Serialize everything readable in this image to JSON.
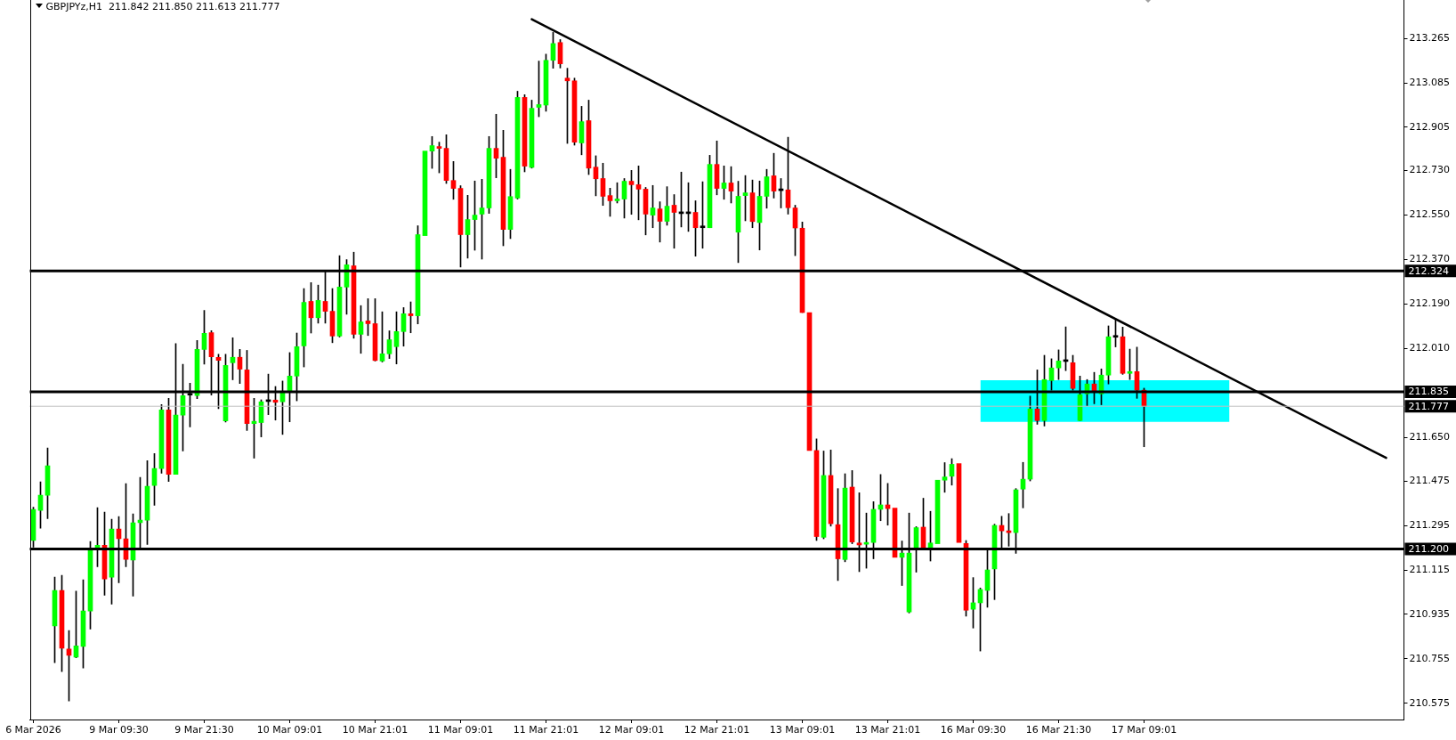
{
  "chart_data": {
    "type": "candlestick",
    "title": "GBPJPYz,H1  211.842 211.850 211.613 211.777",
    "categories": [
      "6 Mar 2026",
      null,
      null,
      null,
      null,
      null,
      null,
      null,
      null,
      null,
      null,
      null,
      "9 Mar 09:30",
      null,
      null,
      null,
      null,
      null,
      null,
      null,
      null,
      null,
      null,
      null,
      "9 Mar 21:30",
      null,
      null,
      null,
      null,
      null,
      null,
      null,
      null,
      null,
      null,
      null,
      "10 Mar 09:01",
      null,
      null,
      null,
      null,
      null,
      null,
      null,
      null,
      null,
      null,
      null,
      "10 Mar 21:01",
      null,
      null,
      null,
      null,
      null,
      null,
      null,
      null,
      null,
      null,
      null,
      "11 Mar 09:01",
      null,
      null,
      null,
      null,
      null,
      null,
      null,
      null,
      null,
      null,
      null,
      "11 Mar 21:01",
      null,
      null,
      null,
      null,
      null,
      null,
      null,
      null,
      null,
      null,
      null,
      "12 Mar 09:01",
      null,
      null,
      null,
      null,
      null,
      null,
      null,
      null,
      null,
      null,
      null,
      "12 Mar 21:01",
      null,
      null,
      null,
      null,
      null,
      null,
      null,
      null,
      null,
      null,
      null,
      "13 Mar 09:01",
      null,
      null,
      null,
      null,
      null,
      null,
      null,
      null,
      null,
      null,
      null,
      "13 Mar 21:01",
      null,
      null,
      null,
      null,
      null,
      null,
      null,
      null,
      null,
      null,
      null,
      "16 Mar 09:30",
      null,
      null,
      null,
      null,
      null,
      null,
      null,
      null,
      null,
      null,
      null,
      "16 Mar 21:30",
      null,
      null,
      null,
      null,
      null,
      null,
      null,
      null,
      null,
      null,
      null,
      "17 Mar 09:01",
      null,
      null,
      null,
      null,
      null,
      null,
      null,
      null,
      null,
      null,
      null,
      null,
      null,
      null,
      null,
      null,
      null,
      null,
      null,
      null,
      null,
      null,
      null,
      null,
      null,
      null,
      null,
      null,
      null,
      null,
      null,
      null,
      null,
      null,
      null,
      null
    ],
    "ohlc": [
      [
        211.234,
        211.369,
        211.207,
        211.36
      ],
      [
        211.356,
        211.471,
        211.284,
        211.417
      ],
      [
        211.417,
        211.608,
        211.322,
        211.536
      ],
      [
        210.888,
        211.086,
        210.74,
        211.032
      ],
      [
        211.032,
        211.093,
        210.704,
        210.798
      ],
      [
        210.795,
        210.87,
        210.585,
        210.77
      ],
      [
        210.762,
        211.029,
        210.76,
        210.808
      ],
      [
        210.806,
        211.075,
        210.718,
        210.949
      ],
      [
        210.949,
        211.23,
        210.876,
        211.194
      ],
      [
        211.198,
        211.367,
        211.128,
        211.215
      ],
      [
        211.215,
        211.349,
        211.013,
        211.078
      ],
      [
        211.086,
        211.32,
        210.977,
        211.28
      ],
      [
        211.28,
        211.331,
        211.063,
        211.241
      ],
      [
        211.241,
        211.464,
        211.128,
        211.158
      ],
      [
        211.155,
        211.342,
        211.009,
        211.306
      ],
      [
        211.306,
        211.489,
        211.2,
        211.316
      ],
      [
        211.316,
        211.557,
        211.218,
        211.453
      ],
      [
        211.457,
        211.586,
        211.376,
        211.525
      ],
      [
        211.525,
        211.784,
        211.506,
        211.762
      ],
      [
        211.762,
        211.809,
        211.473,
        211.502
      ],
      [
        211.502,
        212.03,
        211.502,
        211.741
      ],
      [
        211.741,
        211.947,
        211.596,
        211.82
      ],
      [
        211.822,
        211.87,
        211.693,
        211.822
      ],
      [
        211.82,
        212.043,
        211.808,
        212.007
      ],
      [
        212.007,
        212.165,
        211.947,
        212.072
      ],
      [
        212.075,
        212.083,
        211.822,
        211.977
      ],
      [
        211.975,
        211.987,
        211.767,
        211.963
      ],
      [
        211.718,
        211.987,
        211.713,
        211.942
      ],
      [
        211.953,
        212.054,
        211.884,
        211.975
      ],
      [
        211.975,
        212.007,
        211.869,
        211.927
      ],
      [
        211.924,
        212.003,
        211.679,
        211.707
      ],
      [
        211.707,
        211.809,
        211.567,
        211.716
      ],
      [
        211.711,
        211.803,
        211.653,
        211.795
      ],
      [
        211.796,
        211.907,
        211.743,
        211.796
      ],
      [
        211.802,
        211.857,
        211.721,
        211.793
      ],
      [
        211.795,
        211.879,
        211.663,
        211.831
      ],
      [
        211.834,
        211.994,
        211.714,
        211.899
      ],
      [
        211.899,
        212.073,
        211.799,
        212.018
      ],
      [
        212.021,
        212.253,
        211.936,
        212.197
      ],
      [
        212.201,
        212.277,
        212.073,
        212.135
      ],
      [
        212.135,
        212.267,
        212.113,
        212.205
      ],
      [
        212.201,
        212.32,
        212.113,
        212.161
      ],
      [
        212.161,
        212.253,
        212.034,
        212.061
      ],
      [
        212.061,
        212.386,
        212.057,
        212.259
      ],
      [
        212.259,
        212.37,
        212.149,
        212.349
      ],
      [
        212.345,
        212.4,
        212.052,
        212.068
      ],
      [
        212.068,
        212.184,
        211.991,
        212.118
      ],
      [
        212.122,
        212.212,
        212.063,
        212.111
      ],
      [
        212.111,
        212.212,
        211.96,
        211.962
      ],
      [
        211.96,
        212.159,
        211.956,
        211.989
      ],
      [
        211.989,
        212.082,
        211.97,
        212.046
      ],
      [
        212.018,
        212.159,
        211.948,
        212.079
      ],
      [
        212.079,
        212.176,
        212.02,
        212.151
      ],
      [
        212.151,
        212.199,
        212.074,
        212.143
      ],
      [
        212.143,
        212.507,
        212.11,
        212.471
      ],
      [
        212.467,
        212.809,
        212.467,
        212.809
      ],
      [
        212.809,
        212.868,
        212.739,
        212.831
      ],
      [
        212.827,
        212.845,
        212.721,
        212.82
      ],
      [
        212.82,
        212.875,
        212.678,
        212.69
      ],
      [
        212.69,
        212.767,
        212.614,
        212.658
      ],
      [
        212.658,
        212.669,
        212.34,
        212.471
      ],
      [
        212.471,
        212.63,
        212.376,
        212.532
      ],
      [
        212.532,
        212.688,
        212.408,
        212.55
      ],
      [
        212.554,
        212.695,
        212.372,
        212.579
      ],
      [
        212.579,
        212.868,
        212.557,
        212.82
      ],
      [
        212.82,
        212.958,
        212.701,
        212.78
      ],
      [
        212.784,
        212.893,
        212.426,
        212.492
      ],
      [
        212.492,
        212.735,
        212.455,
        212.625
      ],
      [
        212.619,
        213.051,
        212.615,
        213.026
      ],
      [
        213.026,
        213.037,
        212.725,
        212.748
      ],
      [
        212.743,
        213.015,
        212.74,
        212.982
      ],
      [
        212.986,
        213.173,
        212.948,
        212.997
      ],
      [
        212.995,
        213.201,
        212.97,
        213.176
      ],
      [
        213.176,
        213.289,
        213.144,
        213.244
      ],
      [
        213.248,
        213.26,
        213.145,
        213.162
      ],
      [
        213.104,
        213.144,
        212.84,
        213.093
      ],
      [
        213.093,
        213.104,
        212.833,
        212.845
      ],
      [
        212.842,
        212.99,
        212.794,
        212.928
      ],
      [
        212.932,
        213.015,
        212.714,
        212.74
      ],
      [
        212.744,
        212.79,
        212.628,
        212.697
      ],
      [
        212.698,
        212.76,
        212.589,
        212.626
      ],
      [
        212.629,
        212.659,
        212.545,
        212.608
      ],
      [
        212.608,
        212.681,
        212.599,
        212.615
      ],
      [
        212.615,
        212.698,
        212.538,
        212.687
      ],
      [
        212.687,
        212.731,
        212.553,
        212.673
      ],
      [
        212.673,
        212.749,
        212.531,
        212.655
      ],
      [
        212.655,
        212.662,
        212.47,
        212.554
      ],
      [
        212.55,
        212.67,
        212.499,
        212.579
      ],
      [
        212.575,
        212.604,
        212.441,
        212.525
      ],
      [
        212.525,
        212.665,
        212.509,
        212.586
      ],
      [
        212.59,
        212.633,
        212.416,
        212.561
      ],
      [
        212.556,
        212.724,
        212.502,
        212.556
      ],
      [
        212.556,
        212.681,
        212.484,
        212.556
      ],
      [
        212.561,
        212.608,
        212.384,
        212.499
      ],
      [
        212.499,
        212.685,
        212.416,
        212.499
      ],
      [
        212.499,
        212.792,
        212.499,
        212.755
      ],
      [
        212.755,
        212.85,
        212.632,
        212.658
      ],
      [
        212.658,
        212.749,
        212.614,
        212.68
      ],
      [
        212.68,
        212.746,
        212.599,
        212.647
      ],
      [
        212.481,
        212.687,
        212.358,
        212.626
      ],
      [
        212.629,
        212.71,
        212.527,
        212.64
      ],
      [
        212.64,
        212.692,
        212.499,
        212.524
      ],
      [
        212.52,
        212.688,
        212.409,
        212.626
      ],
      [
        212.626,
        212.735,
        212.578,
        212.705
      ],
      [
        212.709,
        212.8,
        212.619,
        212.647
      ],
      [
        212.649,
        212.698,
        212.579,
        212.649
      ],
      [
        212.652,
        212.865,
        212.554,
        212.58
      ],
      [
        212.579,
        212.59,
        212.386,
        212.498
      ],
      [
        212.497,
        212.522,
        212.156,
        212.156
      ],
      [
        212.156,
        212.165,
        211.594,
        211.598
      ],
      [
        211.598,
        211.645,
        211.234,
        211.25
      ],
      [
        211.247,
        211.596,
        211.241,
        211.497
      ],
      [
        211.497,
        211.6,
        211.292,
        211.302
      ],
      [
        211.298,
        211.444,
        211.072,
        211.16
      ],
      [
        211.157,
        211.504,
        211.148,
        211.446
      ],
      [
        211.45,
        211.517,
        211.221,
        211.228
      ],
      [
        211.224,
        211.427,
        211.108,
        211.216
      ],
      [
        211.219,
        211.345,
        211.122,
        211.226
      ],
      [
        211.226,
        211.391,
        211.16,
        211.36
      ],
      [
        211.36,
        211.501,
        211.314,
        211.378
      ],
      [
        211.378,
        211.465,
        211.296,
        211.363
      ],
      [
        211.365,
        211.369,
        211.157,
        211.166
      ],
      [
        211.166,
        211.232,
        211.052,
        211.183
      ],
      [
        210.945,
        211.345,
        210.941,
        211.183
      ],
      [
        211.202,
        211.29,
        211.106,
        211.286
      ],
      [
        211.288,
        211.405,
        211.196,
        211.202
      ],
      [
        211.202,
        211.352,
        211.151,
        211.224
      ],
      [
        211.221,
        211.487,
        211.219,
        211.478
      ],
      [
        211.478,
        211.549,
        211.429,
        211.491
      ],
      [
        211.494,
        211.565,
        211.458,
        211.542
      ],
      [
        211.545,
        211.555,
        211.224,
        211.226
      ],
      [
        211.222,
        211.234,
        210.928,
        210.952
      ],
      [
        210.956,
        211.084,
        210.88,
        210.982
      ],
      [
        210.982,
        211.042,
        210.787,
        211.036
      ],
      [
        211.032,
        211.197,
        210.964,
        211.115
      ],
      [
        211.119,
        211.3,
        210.995,
        211.295
      ],
      [
        211.295,
        211.332,
        211.204,
        211.273
      ],
      [
        211.273,
        211.343,
        211.211,
        211.266
      ],
      [
        211.266,
        211.444,
        211.182,
        211.439
      ],
      [
        211.442,
        211.55,
        211.366,
        211.482
      ],
      [
        211.482,
        211.818,
        211.475,
        211.766
      ],
      [
        211.766,
        211.924,
        211.704,
        211.719
      ],
      [
        211.719,
        211.983,
        211.697,
        211.885
      ],
      [
        211.881,
        211.969,
        211.842,
        211.932
      ],
      [
        211.932,
        212.005,
        211.885,
        211.96
      ],
      [
        211.958,
        212.098,
        211.921,
        211.958
      ],
      [
        211.953,
        211.983,
        211.842,
        211.849
      ],
      [
        211.719,
        211.899,
        211.719,
        211.824
      ],
      [
        211.827,
        211.885,
        211.779,
        211.867
      ],
      [
        211.867,
        211.914,
        211.787,
        211.834
      ],
      [
        211.827,
        211.928,
        211.783,
        211.903
      ],
      [
        211.903,
        212.102,
        211.867,
        212.058
      ],
      [
        212.056,
        212.129,
        212.017,
        212.056
      ],
      [
        212.058,
        212.097,
        211.906,
        211.91
      ],
      [
        211.91,
        212.008,
        211.885,
        211.917
      ],
      [
        211.917,
        212.016,
        211.809,
        211.842
      ],
      [
        211.842,
        211.85,
        211.613,
        211.777
      ],
      null,
      null,
      null,
      null,
      null,
      null,
      null,
      null,
      null,
      null,
      null,
      null,
      null,
      null,
      null,
      null,
      null,
      null,
      null,
      null,
      null,
      null,
      null,
      null,
      null,
      null,
      null,
      null,
      null,
      null,
      null,
      null,
      null,
      null,
      null,
      null
    ],
    "colors": [
      "#00ff00",
      "#00ff00",
      "#00ff00",
      "#00ff00",
      "#ff0000",
      "#ff0000",
      "#00ff00",
      "#00ff00",
      "#00ff00",
      "#00ff00",
      "#ff0000",
      "#00ff00",
      "#ff0000",
      "#ff0000",
      "#00ff00",
      "#00ff00",
      "#00ff00",
      "#00ff00",
      "#00ff00",
      "#ff0000",
      "#00ff00",
      "#00ff00",
      "#000000",
      "#00ff00",
      "#00ff00",
      "#ff0000",
      "#ff0000",
      "#00ff00",
      "#00ff00",
      "#ff0000",
      "#ff0000",
      "#00ff00",
      "#00ff00",
      "#000000",
      "#ff0000",
      "#00ff00",
      "#00ff00",
      "#00ff00",
      "#00ff00",
      "#ff0000",
      "#00ff00",
      "#ff0000",
      "#ff0000",
      "#00ff00",
      "#00ff00",
      "#ff0000",
      "#00ff00",
      "#ff0000",
      "#ff0000",
      "#00ff00",
      "#00ff00",
      "#00ff00",
      "#00ff00",
      "#ff0000",
      "#00ff00",
      "#00ff00",
      "#00ff00",
      "#ff0000",
      "#ff0000",
      "#ff0000",
      "#ff0000",
      "#00ff00",
      "#00ff00",
      "#00ff00",
      "#00ff00",
      "#ff0000",
      "#ff0000",
      "#00ff00",
      "#00ff00",
      "#ff0000",
      "#00ff00",
      "#00ff00",
      "#00ff00",
      "#00ff00",
      "#ff0000",
      "#ff0000",
      "#ff0000",
      "#00ff00",
      "#ff0000",
      "#ff0000",
      "#ff0000",
      "#ff0000",
      "#00ff00",
      "#00ff00",
      "#ff0000",
      "#ff0000",
      "#ff0000",
      "#00ff00",
      "#ff0000",
      "#00ff00",
      "#ff0000",
      "#000000",
      "#000000",
      "#ff0000",
      "#000000",
      "#00ff00",
      "#ff0000",
      "#00ff00",
      "#ff0000",
      "#00ff00",
      "#00ff00",
      "#ff0000",
      "#00ff00",
      "#00ff00",
      "#ff0000",
      "#000000",
      "#ff0000",
      "#ff0000",
      "#ff0000",
      "#ff0000",
      "#ff0000",
      "#00ff00",
      "#ff0000",
      "#ff0000",
      "#00ff00",
      "#ff0000",
      "#ff0000",
      "#00ff00",
      "#00ff00",
      "#00ff00",
      "#ff0000",
      "#ff0000",
      "#00ff00",
      "#00ff00",
      "#00ff00",
      "#ff0000",
      "#00ff00",
      "#00ff00",
      "#00ff00",
      "#00ff00",
      "#ff0000",
      "#ff0000",
      "#00ff00",
      "#00ff00",
      "#00ff00",
      "#00ff00",
      "#ff0000",
      "#ff0000",
      "#00ff00",
      "#00ff00",
      "#00ff00",
      "#ff0000",
      "#00ff00",
      "#00ff00",
      "#00ff00",
      "#000000",
      "#ff0000",
      "#00ff00",
      "#00ff00",
      "#ff0000",
      "#00ff00",
      "#00ff00",
      "#000000",
      "#ff0000",
      "#00ff00",
      "#ff0000",
      "#ff0000",
      null,
      null,
      null,
      null,
      null,
      null,
      null,
      null,
      null,
      null,
      null,
      null,
      null,
      null,
      null,
      null,
      null,
      null,
      null,
      null,
      null,
      null,
      null,
      null,
      null,
      null,
      null,
      null,
      null,
      null,
      null,
      null,
      null,
      null,
      null,
      null
    ],
    "series": [
      {
        "type": "line",
        "color": "#000000",
        "values": [
          null,
          null,
          null,
          null,
          null,
          null,
          null,
          null,
          null,
          null,
          null,
          null,
          null,
          null,
          null,
          null,
          null,
          null,
          null,
          null,
          null,
          null,
          null,
          null,
          null,
          null,
          null,
          null,
          null,
          null,
          null,
          null,
          null,
          null,
          null,
          null,
          null,
          null,
          null,
          null,
          null,
          null,
          null,
          null,
          null,
          null,
          null,
          null,
          null,
          null,
          null,
          null,
          null,
          null,
          null,
          null,
          null,
          null,
          null,
          null,
          null,
          null,
          null,
          null,
          null,
          null,
          null,
          null,
          null,
          null,
          213.342,
          null,
          null,
          null,
          null,
          null,
          null,
          null,
          null,
          null,
          null,
          null,
          null,
          null,
          null,
          null,
          null,
          null,
          null,
          null,
          null,
          null,
          null,
          null,
          null,
          null,
          null,
          null,
          null,
          null,
          null,
          null,
          null,
          null,
          null,
          null,
          null,
          null,
          null,
          null,
          null,
          null,
          null,
          null,
          null,
          null,
          null,
          null,
          null,
          null,
          null,
          null,
          null,
          null,
          null,
          null,
          null,
          null,
          null,
          null,
          null,
          null,
          null,
          null,
          null,
          null,
          null,
          null,
          null,
          null,
          null,
          null,
          null,
          null,
          null,
          null,
          null,
          null,
          null,
          null,
          null,
          null,
          null,
          null,
          null,
          null,
          null,
          null,
          null,
          null,
          null,
          null,
          null,
          null,
          null,
          null,
          null,
          null,
          null,
          null,
          null,
          null,
          null,
          null,
          null,
          null,
          null,
          null,
          null,
          null,
          null,
          null,
          null,
          null,
          null,
          null,
          null,
          null,
          null,
          null,
          211.568,
          null,
          null
        ]
      },
      {
        "type": "area",
        "color": "#00ffff",
        "values": [
          null,
          null,
          null,
          null,
          null,
          null,
          null,
          null,
          null,
          null,
          null,
          null,
          null,
          null,
          null,
          null,
          null,
          null,
          null,
          null,
          null,
          null,
          null,
          null,
          null,
          null,
          null,
          null,
          null,
          null,
          null,
          null,
          null,
          null,
          null,
          null,
          null,
          null,
          null,
          null,
          null,
          null,
          null,
          null,
          null,
          null,
          null,
          null,
          null,
          null,
          null,
          null,
          null,
          null,
          null,
          null,
          null,
          null,
          null,
          null,
          null,
          null,
          null,
          null,
          null,
          null,
          null,
          null,
          null,
          null,
          null,
          null,
          null,
          null,
          null,
          null,
          null,
          null,
          null,
          null,
          null,
          null,
          null,
          null,
          null,
          null,
          null,
          null,
          null,
          null,
          null,
          null,
          null,
          null,
          null,
          null,
          null,
          null,
          null,
          null,
          null,
          null,
          null,
          null,
          null,
          null,
          null,
          null,
          null,
          null,
          null,
          null,
          null,
          null,
          null,
          null,
          null,
          null,
          null,
          null,
          null,
          null,
          null,
          null,
          null,
          null,
          null,
          null,
          null,
          null,
          null,
          null,
          null,
          null,
          null,
          null,
          null,
          null,
          null,
          null,
          null,
          null,
          null,
          null,
          null,
          null,
          null,
          null,
          null,
          null,
          null,
          null,
          null,
          null,
          null,
          null,
          null,
          null,
          null,
          null,
          null,
          null,
          null,
          null,
          null,
          null,
          null,
          null,
          null,
          null,
          null,
          null,
          null,
          null,
          null,
          null,
          null,
          null,
          null,
          null,
          null,
          null,
          null,
          null,
          null,
          null,
          null,
          null,
          null,
          null,
          null,
          null,
          null
        ],
        "lower": [
          null,
          null,
          null,
          null,
          null,
          null,
          null,
          null,
          null,
          null,
          null,
          null,
          null,
          null,
          null,
          null,
          null,
          null,
          null,
          null,
          null,
          null,
          null,
          null,
          null,
          null,
          null,
          null,
          null,
          null,
          null,
          null,
          null,
          null,
          null,
          null,
          null,
          null,
          null,
          null,
          null,
          null,
          null,
          null,
          null,
          null,
          null,
          null,
          null,
          null,
          null,
          null,
          null,
          null,
          null,
          null,
          null,
          null,
          null,
          null,
          null,
          null,
          null,
          null,
          null,
          null,
          null,
          null,
          null,
          null,
          null,
          null,
          null,
          null,
          null,
          null,
          null,
          null,
          null,
          null,
          null,
          null,
          null,
          null,
          null,
          null,
          null,
          null,
          null,
          null,
          null,
          null,
          null,
          null,
          null,
          null,
          null,
          null,
          null,
          null,
          null,
          null,
          null,
          null,
          null,
          null,
          null,
          null,
          null,
          null,
          null,
          null,
          null,
          null,
          null,
          null,
          null,
          null,
          null,
          null,
          null,
          null,
          null,
          null,
          null,
          null,
          null,
          null,
          null,
          null,
          null,
          null,
          null,
          211.714,
          211.714,
          211.714,
          211.714,
          211.714,
          211.714,
          211.714,
          211.714,
          211.714,
          211.714,
          211.714,
          211.714,
          211.714,
          211.714,
          211.714,
          211.714,
          211.714,
          211.714,
          211.714,
          211.714,
          211.714,
          211.714,
          211.714,
          211.714,
          211.714,
          211.714,
          211.714,
          211.714,
          211.714,
          211.714,
          211.714,
          211.714,
          211.714,
          211.714,
          211.714,
          211.714,
          null,
          null,
          null,
          null,
          null,
          null,
          null,
          null,
          null,
          null,
          null,
          null,
          null,
          null,
          null,
          null,
          null,
          null,
          null,
          null,
          null,
          null,
          null,
          null
        ],
        "upper": [
          null,
          null,
          null,
          null,
          null,
          null,
          null,
          null,
          null,
          null,
          null,
          null,
          null,
          null,
          null,
          null,
          null,
          null,
          null,
          null,
          null,
          null,
          null,
          null,
          null,
          null,
          null,
          null,
          null,
          null,
          null,
          null,
          null,
          null,
          null,
          null,
          null,
          null,
          null,
          null,
          null,
          null,
          null,
          null,
          null,
          null,
          null,
          null,
          null,
          null,
          null,
          null,
          null,
          null,
          null,
          null,
          null,
          null,
          null,
          null,
          null,
          null,
          null,
          null,
          null,
          null,
          null,
          null,
          null,
          null,
          null,
          null,
          null,
          null,
          null,
          null,
          null,
          null,
          null,
          null,
          null,
          null,
          null,
          null,
          null,
          null,
          null,
          null,
          null,
          null,
          null,
          null,
          null,
          null,
          null,
          null,
          null,
          null,
          null,
          null,
          null,
          null,
          null,
          null,
          null,
          null,
          null,
          null,
          null,
          null,
          null,
          null,
          null,
          null,
          null,
          null,
          null,
          null,
          null,
          null,
          null,
          null,
          null,
          null,
          null,
          null,
          null,
          null,
          null,
          null,
          null,
          null,
          null,
          211.882,
          211.882,
          211.882,
          211.882,
          211.882,
          211.882,
          211.882,
          211.882,
          211.882,
          211.882,
          211.882,
          211.882,
          211.882,
          211.882,
          211.882,
          211.882,
          211.882,
          211.882,
          211.882,
          211.882,
          211.882,
          211.882,
          211.882,
          211.882,
          211.882,
          211.882,
          211.882,
          211.882,
          211.882,
          211.882,
          211.882,
          211.882,
          211.882,
          211.882,
          211.882,
          211.882,
          null,
          null,
          null,
          null,
          null,
          null,
          null,
          null,
          null,
          null,
          null,
          null,
          null,
          null,
          null,
          null,
          null,
          null,
          null,
          null,
          null,
          null,
          null,
          null
        ]
      }
    ],
    "ylim": [
      210.51,
      213.42
    ],
    "yticks": [
      213.265,
      213.085,
      212.905,
      {
        "value": 212.73,
        "label": "212.730"
      },
      {
        "value": 212.55,
        "label": "212.550"
      },
      {
        "value": 212.37,
        "label": "212.370"
      },
      {
        "value": 212.19,
        "label": "212.190"
      },
      {
        "value": 212.01,
        "label": "212.010"
      },
      {
        "value": 211.65,
        "label": "211.650"
      },
      211.475,
      211.295,
      211.115,
      210.935,
      210.755,
      210.575
    ],
    "ref_lines": [
      {
        "axis": "y",
        "value": 212.324,
        "label": "212.324",
        "color": "#000000"
      },
      {
        "axis": "y",
        "value": 211.835,
        "label": "211.835",
        "color": "#000000"
      },
      {
        "axis": "y",
        "value": 211.2,
        "label": "211.200",
        "color": "#000000"
      },
      {
        "axis": "y",
        "value": 211.777,
        "label": "211.777",
        "color": "#c0c0c0"
      }
    ]
  }
}
